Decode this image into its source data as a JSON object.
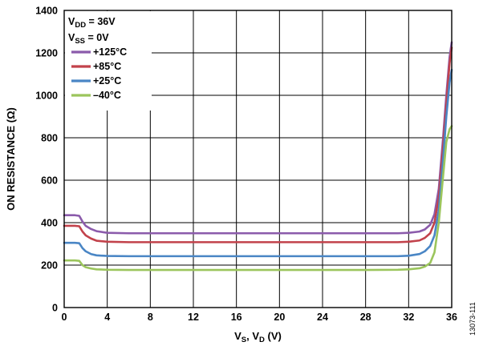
{
  "chart_data": {
    "type": "line",
    "title": "",
    "xlabel": {
      "main": "V",
      "sub1": "S",
      "mid": ", V",
      "sub2": "D",
      "tail": " (V)"
    },
    "ylabel": "ON RESISTANCE (Ω)",
    "xlim": [
      0,
      36
    ],
    "ylim": [
      0,
      1400
    ],
    "xticks": [
      0,
      4,
      8,
      12,
      16,
      20,
      24,
      28,
      32,
      36
    ],
    "yticks": [
      0,
      200,
      400,
      600,
      800,
      1000,
      1200,
      1400
    ],
    "grid": true,
    "legend_position": "top-left",
    "conditions": [
      {
        "main": "V",
        "sub": "DD",
        "tail": " = 36V"
      },
      {
        "main": "V",
        "sub": "SS",
        "tail": " = 0V"
      }
    ],
    "series": [
      {
        "name": "+125°C",
        "color": "#8b5bab",
        "x": [
          0,
          1,
          1.4,
          1.7,
          2,
          2.5,
          3,
          4,
          6,
          10,
          16,
          20,
          24,
          28,
          31,
          32,
          33,
          33.5,
          34,
          34.4,
          34.8,
          35.2,
          35.5,
          35.8,
          36
        ],
        "y": [
          435,
          435,
          432,
          405,
          385,
          370,
          360,
          352,
          350,
          350,
          350,
          350,
          350,
          350,
          350,
          352,
          358,
          368,
          390,
          440,
          560,
          800,
          1000,
          1180,
          1250
        ]
      },
      {
        "name": "+85°C",
        "color": "#c2424b",
        "x": [
          0,
          1,
          1.4,
          1.7,
          2,
          2.5,
          3,
          4,
          6,
          10,
          16,
          20,
          24,
          28,
          31,
          32,
          33,
          33.5,
          34,
          34.4,
          34.8,
          35.2,
          35.5,
          35.8,
          36
        ],
        "y": [
          385,
          385,
          383,
          358,
          340,
          325,
          315,
          310,
          308,
          308,
          308,
          308,
          308,
          308,
          308,
          310,
          316,
          328,
          350,
          400,
          520,
          760,
          960,
          1150,
          1225
        ]
      },
      {
        "name": "+25°C",
        "color": "#4a86c5",
        "x": [
          0,
          1,
          1.4,
          1.7,
          2,
          2.5,
          3,
          4,
          6,
          10,
          16,
          20,
          24,
          28,
          31,
          32,
          33,
          33.5,
          34,
          34.4,
          34.8,
          35.2,
          35.5,
          35.8,
          36
        ],
        "y": [
          305,
          305,
          303,
          280,
          265,
          252,
          246,
          243,
          242,
          242,
          242,
          242,
          242,
          242,
          242,
          244,
          252,
          265,
          290,
          340,
          460,
          700,
          900,
          1060,
          1120
        ]
      },
      {
        "name": "–40°C",
        "color": "#9bc55c",
        "x": [
          0,
          1,
          1.4,
          1.7,
          2,
          2.5,
          3,
          4,
          6,
          10,
          16,
          20,
          24,
          28,
          31,
          32,
          33,
          33.5,
          34,
          34.4,
          34.8,
          35.2,
          35.5,
          35.8,
          36
        ],
        "y": [
          222,
          222,
          220,
          200,
          190,
          184,
          180,
          178,
          177,
          177,
          177,
          177,
          177,
          177,
          178,
          180,
          185,
          193,
          210,
          260,
          400,
          620,
          780,
          840,
          855
        ]
      }
    ]
  },
  "figure_id": "13073-111"
}
